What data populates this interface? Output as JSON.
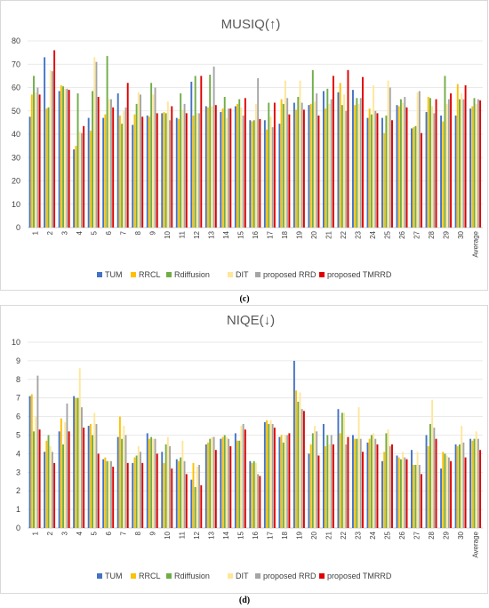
{
  "series_colors": [
    "#4472c4",
    "#ffc000",
    "#70ad47",
    "#ffe699",
    "#a5a5a5",
    "#e00000"
  ],
  "chart_data": [
    {
      "type": "bar",
      "title": "MUSIQ(↑)",
      "caption": "(c)",
      "ylim": [
        0,
        80
      ],
      "yticks": [
        0,
        10,
        20,
        30,
        40,
        50,
        60,
        70,
        80
      ],
      "grid": true,
      "legend": "bottom",
      "categories": [
        "1",
        "2",
        "3",
        "4",
        "5",
        "6",
        "7",
        "8",
        "9",
        "10",
        "11",
        "12",
        "13",
        "14",
        "15",
        "16",
        "17",
        "18",
        "19",
        "20",
        "21",
        "22",
        "23",
        "24",
        "25",
        "26",
        "27",
        "28",
        "29",
        "30",
        "Average"
      ],
      "series": [
        {
          "name": "TUM",
          "values": [
            47.5,
            73,
            58.5,
            33.5,
            47,
            47,
            57.5,
            44,
            48,
            49,
            47,
            62.5,
            52,
            49.5,
            52,
            46,
            46,
            44.5,
            53.5,
            52.5,
            58.5,
            58,
            59,
            47,
            47,
            52.5,
            42.5,
            49.5,
            48,
            48,
            51
          ]
        },
        {
          "name": "RRCL",
          "values": [
            57,
            51,
            61,
            35,
            41.5,
            48.5,
            48,
            48.5,
            47.5,
            49.5,
            46.5,
            48,
            51.5,
            51,
            53,
            45.5,
            42,
            55,
            50.5,
            53,
            51,
            62,
            52.5,
            51,
            40.5,
            52,
            43,
            56,
            45.5,
            61.5,
            52
          ]
        },
        {
          "name": "Rdiffusion",
          "values": [
            65,
            51.5,
            60.5,
            57.5,
            58.5,
            73.5,
            44.5,
            53,
            62,
            49,
            57.5,
            65,
            65.5,
            56,
            55,
            46,
            53.5,
            53,
            56,
            67.5,
            59.5,
            52.5,
            55.5,
            48.5,
            48,
            55,
            43.5,
            55.5,
            65,
            55,
            55.5
          ]
        },
        {
          "name": "DIT",
          "values": [
            58,
            67.5,
            59.5,
            41,
            73,
            55,
            50,
            58,
            57,
            54,
            50.5,
            49,
            52,
            47,
            51.5,
            53,
            47.5,
            63,
            63,
            54,
            53,
            57,
            53,
            61,
            63,
            53.5,
            58,
            52,
            53,
            57.5,
            53
          ]
        },
        {
          "name": "proposed RRD",
          "values": [
            60,
            67,
            59.5,
            40.5,
            71,
            55,
            51.5,
            57,
            60,
            46,
            53,
            49,
            69,
            51,
            48,
            64,
            43,
            55.5,
            53.5,
            57.5,
            55,
            50,
            55.5,
            50,
            60,
            56,
            58.5,
            49,
            55,
            55,
            55
          ]
        },
        {
          "name": "proposed TMRRD",
          "values": [
            57,
            76,
            59,
            43.5,
            56,
            51.5,
            62,
            47.5,
            49,
            52,
            49,
            65,
            52.5,
            51,
            55.5,
            46.5,
            53.5,
            48.5,
            50.5,
            48,
            65,
            67.5,
            64.5,
            49,
            46,
            51.5,
            40.5,
            55,
            57.5,
            61,
            54.5
          ]
        }
      ]
    },
    {
      "type": "bar",
      "title": "NIQE(↓)",
      "caption": "(d)",
      "ylim": [
        0,
        10
      ],
      "yticks": [
        0,
        1,
        2,
        3,
        4,
        5,
        6,
        7,
        8,
        9,
        10
      ],
      "grid": true,
      "legend": "bottom",
      "categories": [
        "1",
        "2",
        "3",
        "4",
        "5",
        "6",
        "7",
        "8",
        "9",
        "10",
        "11",
        "12",
        "13",
        "14",
        "15",
        "16",
        "17",
        "18",
        "19",
        "20",
        "21",
        "22",
        "23",
        "24",
        "25",
        "26",
        "27",
        "28",
        "29",
        "30",
        "Average"
      ],
      "series": [
        {
          "name": "TUM",
          "values": [
            7.1,
            4.1,
            5.2,
            7.1,
            5.5,
            3.7,
            4.9,
            3.5,
            5.1,
            4.1,
            3.7,
            2.6,
            4.5,
            4.8,
            5.1,
            3.6,
            5.7,
            4.9,
            9,
            4,
            5.6,
            6.4,
            5,
            4.6,
            3.6,
            3.9,
            4.2,
            5,
            3.2,
            4.5,
            4.8
          ]
        },
        {
          "name": "RRCL",
          "values": [
            7.2,
            4.7,
            5.9,
            7,
            5.6,
            3.8,
            6,
            3.8,
            4.8,
            3.5,
            3.6,
            3.5,
            4.6,
            4.9,
            4.7,
            3.5,
            5.8,
            5,
            7.4,
            4.5,
            4.4,
            5.1,
            4.8,
            4.8,
            4.1,
            3.8,
            3.4,
            4.4,
            4.1,
            4.4,
            4.7
          ]
        },
        {
          "name": "Rdiffusion",
          "values": [
            5.2,
            5,
            4.5,
            7,
            5,
            3.6,
            4.8,
            3.9,
            4.9,
            4.5,
            3.8,
            2.2,
            4.8,
            5,
            4.7,
            3.6,
            5.6,
            4.6,
            6.8,
            5.1,
            5,
            6.2,
            4.8,
            5,
            5.1,
            3.7,
            3.4,
            5.6,
            4,
            4.5,
            4.8
          ]
        },
        {
          "name": "DIT",
          "values": [
            6,
            4.4,
            5.7,
            8.6,
            6.2,
            3.6,
            5.5,
            4.4,
            4.8,
            4.9,
            4.7,
            3.3,
            4.9,
            4.9,
            5.5,
            3.5,
            5.8,
            5,
            7.3,
            5.5,
            4.5,
            6.2,
            6.5,
            5.1,
            5.3,
            4.1,
            4.1,
            6.9,
            3.9,
            5.5,
            5.2
          ]
        },
        {
          "name": "proposed RRD",
          "values": [
            8.2,
            4.1,
            6.7,
            6.5,
            5.6,
            3.6,
            5,
            4.1,
            4.8,
            4.4,
            3.6,
            3.4,
            4.9,
            4.8,
            5.6,
            2.9,
            5.6,
            5,
            6.4,
            5.2,
            5,
            4.5,
            4.8,
            4.8,
            4.4,
            3.8,
            3.4,
            5.4,
            3.8,
            4.6,
            4.8
          ]
        },
        {
          "name": "proposed TMRRD",
          "values": [
            5.3,
            3.5,
            5.2,
            5.4,
            4,
            3.3,
            3.5,
            3.5,
            4,
            3.2,
            2.9,
            2.3,
            4.2,
            4.4,
            5.3,
            2.8,
            5.4,
            5.1,
            6.3,
            3.9,
            4.5,
            4.9,
            4.1,
            4.5,
            4.5,
            3.7,
            2.9,
            4.8,
            3.6,
            3.8,
            4.2
          ]
        }
      ]
    }
  ]
}
